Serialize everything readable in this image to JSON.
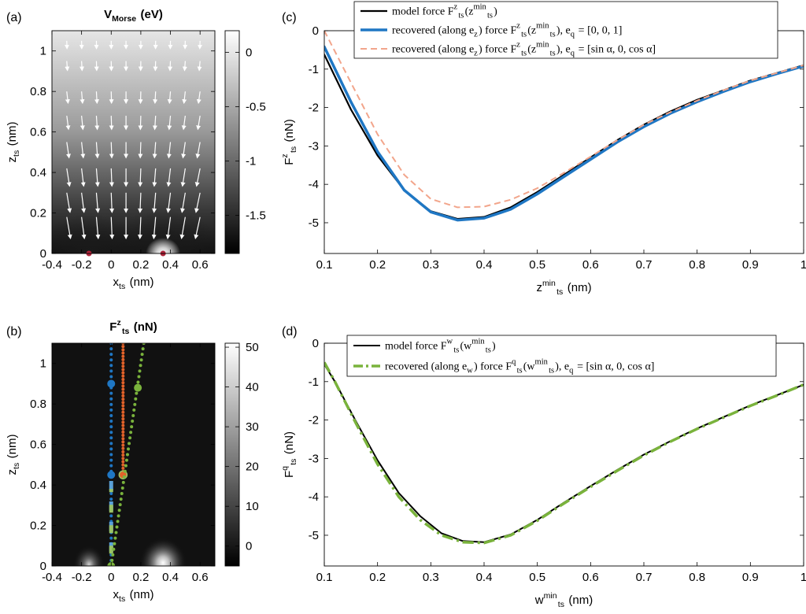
{
  "panels": {
    "a": {
      "label": "(a)"
    },
    "b": {
      "label": "(b)"
    },
    "c": {
      "label": "(c)"
    },
    "d": {
      "label": "(d)"
    }
  },
  "chart_data": [
    {
      "id": "a",
      "type": "heatmap",
      "title": "V",
      "title_sub": "Morse",
      "title_unit": "(eV)",
      "xlabel": "x",
      "xlabel_sub": "ts",
      "xlabel_unit": "(nm)",
      "ylabel": "z",
      "ylabel_sub": "ts",
      "ylabel_unit": "(nm)",
      "xlim": [
        -0.4,
        0.7
      ],
      "ylim": [
        0,
        1.1
      ],
      "xticks": [
        "-0.4",
        "-0.2",
        "0",
        "0.2",
        "0.4",
        "0.6"
      ],
      "xtick_values": [
        -0.4,
        -0.2,
        0,
        0.2,
        0.4,
        0.6
      ],
      "yticks": [
        "0",
        "0.2",
        "0.4",
        "0.6",
        "0.8",
        "1"
      ],
      "ytick_values": [
        0,
        0.2,
        0.4,
        0.6,
        0.8,
        1
      ],
      "colorbar": {
        "range": [
          -1.85,
          0.2
        ],
        "ticks": [
          "0",
          "-0.5",
          "-1",
          "-1.5"
        ],
        "tick_values": [
          0,
          -0.5,
          -1,
          -1.5
        ]
      },
      "atoms": [
        {
          "x": -0.15,
          "z": 0
        },
        {
          "x": 0.35,
          "z": 0
        }
      ],
      "atom_color": "#b0243a",
      "grid": false
    },
    {
      "id": "b",
      "type": "heatmap",
      "title": "F",
      "title_sub": "ts",
      "title_sup": "z",
      "title_unit": "(nN)",
      "xlabel": "x",
      "xlabel_sub": "ts",
      "xlabel_unit": "(nm)",
      "ylabel": "z",
      "ylabel_sub": "ts",
      "ylabel_unit": "(nm)",
      "xlim": [
        -0.4,
        0.7
      ],
      "ylim": [
        0,
        1.1
      ],
      "xticks": [
        "-0.4",
        "-0.2",
        "0",
        "0.2",
        "0.4",
        "0.6"
      ],
      "xtick_values": [
        -0.4,
        -0.2,
        0,
        0.2,
        0.4,
        0.6
      ],
      "yticks": [
        "0",
        "0.2",
        "0.4",
        "0.6",
        "0.8",
        "1"
      ],
      "ytick_values": [
        0,
        0.2,
        0.4,
        0.6,
        0.8,
        1
      ],
      "colorbar": {
        "range": [
          -5,
          51
        ],
        "ticks": [
          "50",
          "40",
          "30",
          "20",
          "10",
          "0"
        ],
        "tick_values": [
          50,
          40,
          30,
          20,
          10,
          0
        ]
      },
      "trajectories": [
        {
          "color": "#1f77c4",
          "x0": 0.0,
          "z0": 0.0,
          "x1": 0.0,
          "z1": 1.1,
          "big_points": [
            {
              "x": 0.0,
              "z": 0.9
            },
            {
              "x": 0.0,
              "z": 0.45
            }
          ]
        },
        {
          "color": "#e2622a",
          "x0": 0.08,
          "z0": 0.45,
          "x1": 0.08,
          "z1": 1.1,
          "big_points": [
            {
              "x": 0.08,
              "z": 0.45
            }
          ]
        },
        {
          "color": "#7ab33c",
          "x0": 0.0,
          "z0": 0.0,
          "x1": 0.22,
          "z1": 1.1,
          "big_points": [
            {
              "x": 0.0,
              "z": 0.0
            },
            {
              "x": 0.18,
              "z": 0.88
            }
          ]
        }
      ],
      "grid": false
    },
    {
      "id": "c",
      "type": "line",
      "xlabel": "z",
      "xlabel_sub": "ts",
      "xlabel_sup": "min",
      "xlabel_unit": "(nm)",
      "ylabel": "F",
      "ylabel_sub": "ts",
      "ylabel_sup": "z",
      "ylabel_unit": "(nN)",
      "xlim": [
        0.1,
        1
      ],
      "ylim": [
        -5.8,
        0
      ],
      "xticks": [
        "0.1",
        "0.2",
        "0.3",
        "0.4",
        "0.5",
        "0.6",
        "0.7",
        "0.8",
        "0.9",
        "1"
      ],
      "xtick_values": [
        0.1,
        0.2,
        0.3,
        0.4,
        0.5,
        0.6,
        0.7,
        0.8,
        0.9,
        1
      ],
      "yticks": [
        "0",
        "-1",
        "-2",
        "-3",
        "-4",
        "-5"
      ],
      "ytick_values": [
        0,
        -1,
        -2,
        -3,
        -4,
        -5
      ],
      "legend_position": "top",
      "series": [
        {
          "name": "model force F_ts^z(z_ts^min)",
          "color": "#000000",
          "style": "solid",
          "width": 2.2,
          "x": [
            0.1,
            0.15,
            0.2,
            0.25,
            0.3,
            0.35,
            0.4,
            0.45,
            0.5,
            0.55,
            0.6,
            0.65,
            0.7,
            0.75,
            0.8,
            0.85,
            0.9,
            0.95,
            1.0
          ],
          "y": [
            -0.62,
            -2.05,
            -3.25,
            -4.15,
            -4.7,
            -4.9,
            -4.85,
            -4.6,
            -4.2,
            -3.75,
            -3.3,
            -2.85,
            -2.45,
            -2.1,
            -1.8,
            -1.55,
            -1.3,
            -1.1,
            -0.9
          ]
        },
        {
          "name": "recovered (along e_z) force F_ts^z(z_ts^min), e_q = [0, 0, 1]",
          "color": "#1f77c4",
          "style": "solid",
          "width": 3.5,
          "x": [
            0.1,
            0.15,
            0.2,
            0.25,
            0.3,
            0.35,
            0.4,
            0.45,
            0.5,
            0.55,
            0.6,
            0.65,
            0.7,
            0.75,
            0.8,
            0.85,
            0.9,
            0.95,
            1.0
          ],
          "y": [
            -0.42,
            -1.85,
            -3.15,
            -4.15,
            -4.72,
            -4.93,
            -4.88,
            -4.65,
            -4.25,
            -3.8,
            -3.35,
            -2.9,
            -2.5,
            -2.15,
            -1.85,
            -1.58,
            -1.33,
            -1.12,
            -0.92
          ]
        },
        {
          "name": "recovered (along e_z) force F_ts^z(z_ts^min), e_q = [sin α, 0, cos α]",
          "color": "#f2a58b",
          "style": "dashed",
          "width": 2,
          "x": [
            0.1,
            0.15,
            0.2,
            0.25,
            0.3,
            0.35,
            0.4,
            0.45,
            0.5,
            0.55,
            0.6,
            0.65,
            0.7,
            0.75,
            0.8,
            0.85,
            0.9,
            0.95,
            1.0
          ],
          "y": [
            0.0,
            -1.35,
            -2.7,
            -3.75,
            -4.38,
            -4.6,
            -4.58,
            -4.4,
            -4.1,
            -3.7,
            -3.28,
            -2.85,
            -2.45,
            -2.12,
            -1.82,
            -1.55,
            -1.3,
            -1.1,
            -0.9
          ]
        }
      ],
      "legend_tex": [
        {
          "prefix": "model force ",
          "sym": "F",
          "sub": "ts",
          "sup": "z",
          "arg": "(z",
          "arg_sub": "ts",
          "arg_sup": "min",
          "suffix": ")"
        },
        {
          "prefix": "recovered (along e",
          "prefix_sub": "z",
          "mid": ") force ",
          "sym": "F",
          "sub": "ts",
          "sup": "z",
          "arg": "(z",
          "arg_sub": "ts",
          "arg_sup": "min",
          "suffix": "),  e",
          "suffix_sub": "q",
          "tail": " = [0, 0, 1]"
        },
        {
          "prefix": "recovered (along e",
          "prefix_sub": "z",
          "mid": ") force ",
          "sym": "F",
          "sub": "ts",
          "sup": "z",
          "arg": "(z",
          "arg_sub": "ts",
          "arg_sup": "min",
          "suffix": "),  e",
          "suffix_sub": "q",
          "tail": " = [sin α, 0, cos α]"
        }
      ],
      "grid": false
    },
    {
      "id": "d",
      "type": "line",
      "xlabel": "w",
      "xlabel_sub": "ts",
      "xlabel_sup": "min",
      "xlabel_unit": "(nm)",
      "ylabel": "F",
      "ylabel_sub": "ts",
      "ylabel_sup": "q",
      "ylabel_unit": "(nN)",
      "xlim": [
        0.1,
        1
      ],
      "ylim": [
        -5.8,
        0
      ],
      "xticks": [
        "0.1",
        "0.2",
        "0.3",
        "0.4",
        "0.5",
        "0.6",
        "0.7",
        "0.8",
        "0.9",
        "1"
      ],
      "xtick_values": [
        0.1,
        0.2,
        0.3,
        0.4,
        0.5,
        0.6,
        0.7,
        0.8,
        0.9,
        1
      ],
      "yticks": [
        "0",
        "-1",
        "-2",
        "-3",
        "-4",
        "-5"
      ],
      "ytick_values": [
        0,
        -1,
        -2,
        -3,
        -4,
        -5
      ],
      "legend_position": "top",
      "series": [
        {
          "name": "model force F_ts^w(w_ts^min)",
          "color": "#000000",
          "style": "solid",
          "width": 2,
          "x": [
            0.1,
            0.12,
            0.16,
            0.2,
            0.24,
            0.28,
            0.32,
            0.36,
            0.4,
            0.45,
            0.5,
            0.55,
            0.6,
            0.65,
            0.7,
            0.75,
            0.8,
            0.85,
            0.9,
            0.95,
            1.0
          ],
          "y": [
            -0.55,
            -1.0,
            -2.05,
            -3.05,
            -3.9,
            -4.5,
            -4.95,
            -5.15,
            -5.18,
            -4.98,
            -4.6,
            -4.15,
            -3.72,
            -3.3,
            -2.9,
            -2.55,
            -2.22,
            -1.92,
            -1.62,
            -1.35,
            -1.08
          ]
        },
        {
          "name": "recovered (along e_w) force F_ts^q(w_ts^min), e_q = [sin α, 0, cos α]",
          "color": "#7ab33c",
          "style": "dashdot",
          "width": 3.5,
          "x": [
            0.1,
            0.12,
            0.16,
            0.2,
            0.24,
            0.28,
            0.32,
            0.36,
            0.4,
            0.45,
            0.5,
            0.55,
            0.6,
            0.65,
            0.7,
            0.75,
            0.8,
            0.85,
            0.9,
            0.95,
            1.0
          ],
          "y": [
            -0.5,
            -1.0,
            -2.1,
            -3.15,
            -4.0,
            -4.6,
            -5.0,
            -5.18,
            -5.2,
            -5.0,
            -4.62,
            -4.17,
            -3.74,
            -3.32,
            -2.92,
            -2.56,
            -2.23,
            -1.93,
            -1.63,
            -1.36,
            -1.08
          ]
        }
      ],
      "legend_tex": [
        {
          "prefix": "model force ",
          "sym": "F",
          "sub": "ts",
          "sup": "w",
          "arg": "(w",
          "arg_sub": "ts",
          "arg_sup": "min",
          "suffix": ")"
        },
        {
          "prefix": "recovered (along e",
          "prefix_sub": "w",
          "mid": ") force ",
          "sym": "F",
          "sub": "ts",
          "sup": "q",
          "arg": "(w",
          "arg_sub": "ts",
          "arg_sup": "min",
          "suffix": "),  e",
          "suffix_sub": "q",
          "tail": " = [sin α, 0, cos α]"
        }
      ],
      "grid": false
    }
  ]
}
